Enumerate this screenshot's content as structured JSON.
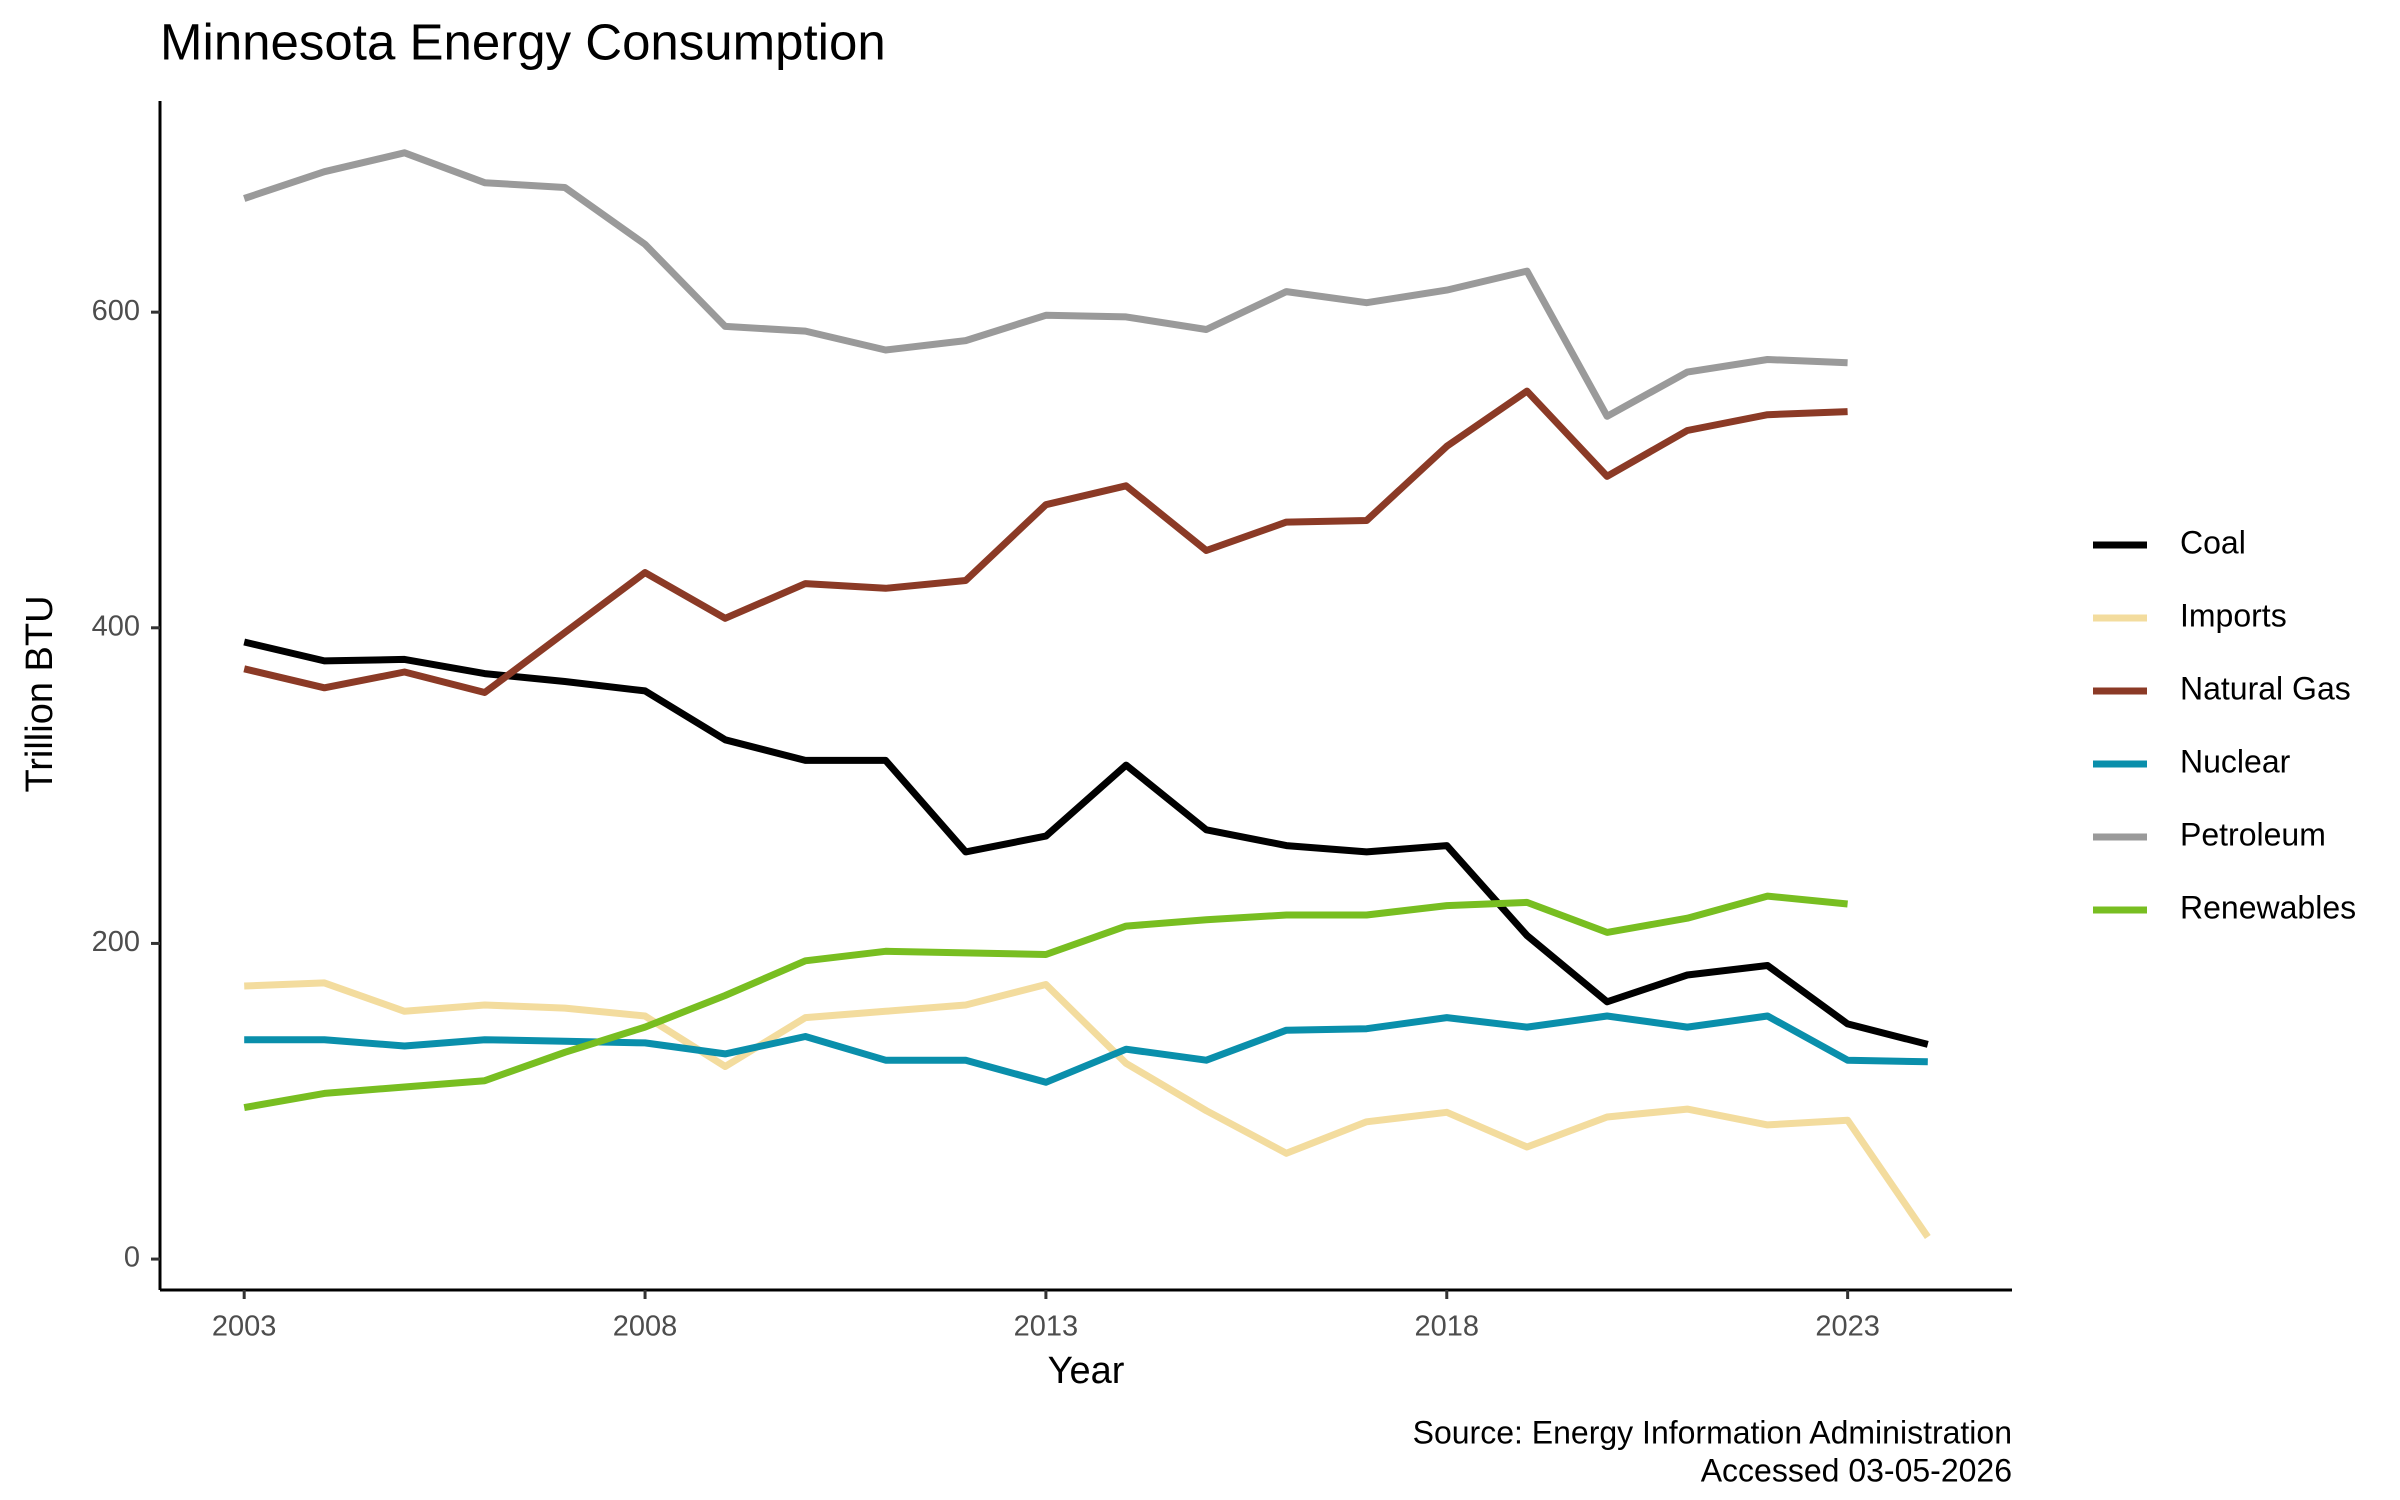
{
  "chart_data": {
    "type": "line",
    "title": "Minnesota Energy Consumption",
    "xlabel": "Year",
    "ylabel": "Trillion BTU",
    "caption": [
      "Source: Energy Information Administration",
      "Accessed 03-05-2026"
    ],
    "x": [
      2003,
      2004,
      2005,
      2006,
      2007,
      2008,
      2009,
      2010,
      2011,
      2012,
      2013,
      2014,
      2015,
      2016,
      2017,
      2018,
      2019,
      2020,
      2021,
      2022,
      2023,
      2024
    ],
    "series": [
      {
        "name": "Coal",
        "color": "#000000",
        "values": [
          391,
          379,
          380,
          371,
          366,
          360,
          329,
          316,
          316,
          258,
          268,
          313,
          272,
          262,
          258,
          262,
          205,
          163,
          180,
          186,
          149,
          136
        ]
      },
      {
        "name": "Imports",
        "color": "#f3dc9e",
        "values": [
          173,
          175,
          157,
          161,
          159,
          154,
          122,
          153,
          157,
          161,
          174,
          124,
          94,
          67,
          87,
          93,
          71,
          90,
          95,
          85,
          88,
          14
        ]
      },
      {
        "name": "Natural Gas",
        "color": "#8b3a26",
        "values": [
          374,
          362,
          372,
          359,
          397,
          435,
          406,
          428,
          425,
          430,
          478,
          490,
          449,
          467,
          468,
          515,
          550,
          496,
          525,
          535,
          537,
          null
        ]
      },
      {
        "name": "Nuclear",
        "color": "#0a8fab",
        "values": [
          139,
          139,
          135,
          139,
          138,
          137,
          130,
          141,
          126,
          126,
          112,
          133,
          126,
          145,
          146,
          153,
          147,
          154,
          147,
          154,
          126,
          125
        ]
      },
      {
        "name": "Petroleum",
        "color": "#9a9a9a",
        "values": [
          672,
          689,
          701,
          682,
          679,
          643,
          591,
          588,
          576,
          582,
          598,
          597,
          589,
          613,
          606,
          614,
          626,
          534,
          562,
          570,
          568,
          null
        ]
      },
      {
        "name": "Renewables",
        "color": "#78be21",
        "values": [
          96,
          105,
          109,
          113,
          131,
          147,
          167,
          189,
          195,
          194,
          193,
          211,
          215,
          218,
          218,
          224,
          226,
          207,
          216,
          230,
          225,
          null
        ]
      }
    ],
    "xlim": [
      2001.95,
      2025.05
    ],
    "ylim": [
      -19.6,
      733.8
    ],
    "xticks": [
      2003,
      2008,
      2013,
      2018,
      2023
    ],
    "yticks": [
      0,
      200,
      400,
      600
    ],
    "grid": false,
    "legend": "right"
  }
}
